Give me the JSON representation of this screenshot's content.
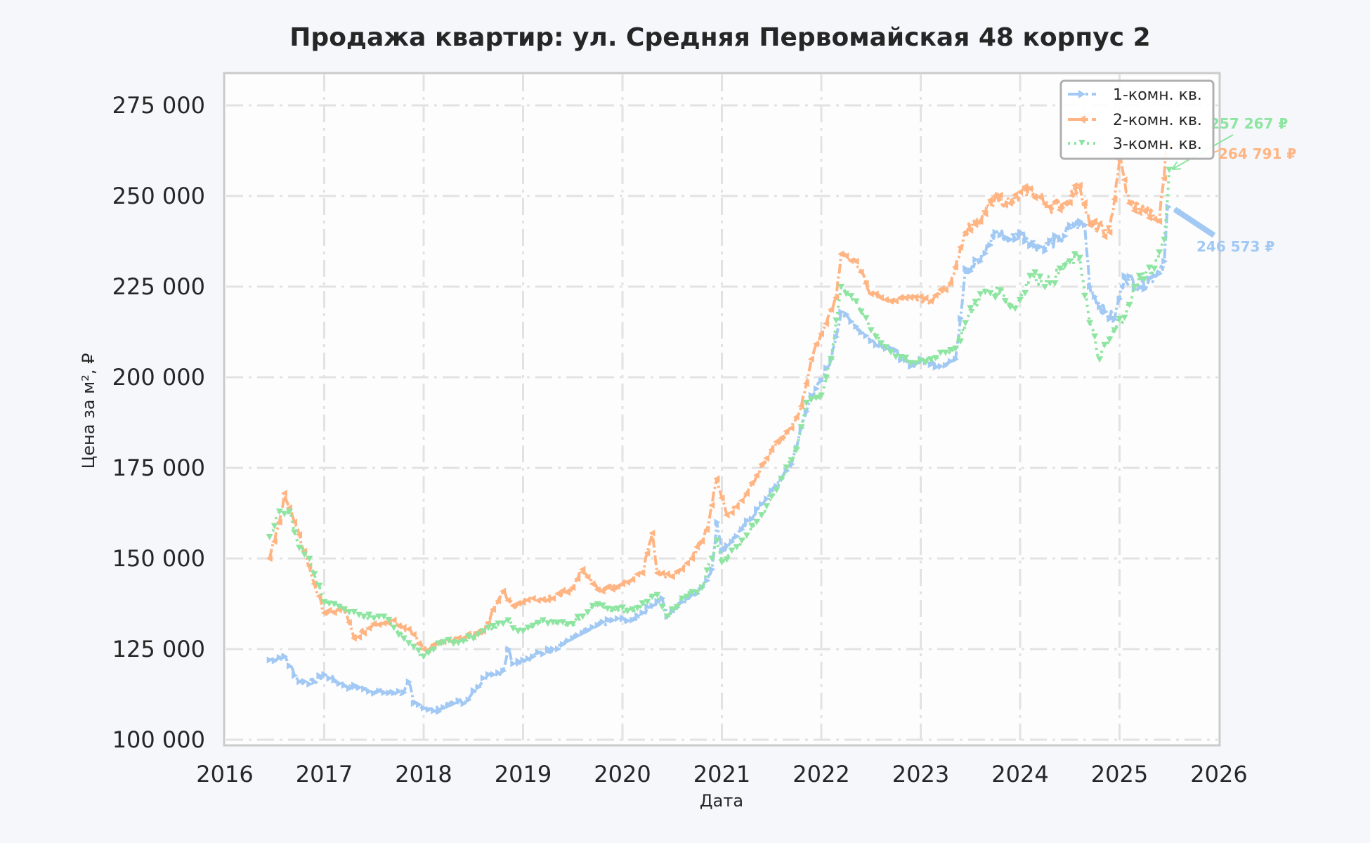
{
  "chart_data": {
    "type": "line",
    "title": "Продажа квартир: ул. Средняя Первомайская 48 корпус 2",
    "xlabel": "Дата",
    "ylabel": "Цена за м², ₽",
    "xlim": [
      2016,
      2026
    ],
    "ylim": [
      100000,
      285000
    ],
    "x_ticks": [
      "2016",
      "2017",
      "2018",
      "2019",
      "2020",
      "2021",
      "2022",
      "2023",
      "2024",
      "2025",
      "2026"
    ],
    "y_ticks": [
      "100 000",
      "125 000",
      "150 000",
      "175 000",
      "200 000",
      "225 000",
      "250 000",
      "275 000"
    ],
    "y_tick_values": [
      100000,
      125000,
      150000,
      175000,
      200000,
      225000,
      250000,
      275000
    ],
    "grid": true,
    "legend_position": "upper right",
    "series": [
      {
        "name": "1-комн. кв.",
        "color": "#a1c9f4",
        "marker": "triangle-right",
        "linestyle": "dash-dot",
        "x": [
          2016.45,
          2016.6,
          2016.75,
          2016.9,
          2017.0,
          2017.2,
          2017.4,
          2017.6,
          2017.8,
          2017.85,
          2017.9,
          2018.1,
          2018.3,
          2018.45,
          2018.6,
          2018.8,
          2018.85,
          2018.9,
          2019.0,
          2019.3,
          2019.5,
          2019.7,
          2019.9,
          2020.1,
          2020.3,
          2020.4,
          2020.45,
          2020.6,
          2020.8,
          2020.9,
          2020.95,
          2021.0,
          2021.2,
          2021.4,
          2021.6,
          2021.7,
          2021.8,
          2021.9,
          2022.0,
          2022.1,
          2022.2,
          2022.35,
          2022.5,
          2022.7,
          2022.9,
          2023.0,
          2023.2,
          2023.35,
          2023.45,
          2023.6,
          2023.75,
          2023.9,
          2024.0,
          2024.2,
          2024.4,
          2024.55,
          2024.65,
          2024.7,
          2024.85,
          2024.95,
          2025.05,
          2025.2,
          2025.35,
          2025.45,
          2025.48,
          2025.5
        ],
        "values": [
          122000,
          123000,
          116000,
          116000,
          118000,
          115000,
          114000,
          113000,
          113000,
          116000,
          110000,
          108000,
          110000,
          111000,
          117000,
          119000,
          125000,
          121000,
          122000,
          125000,
          128000,
          131000,
          133000,
          133000,
          137000,
          139000,
          134000,
          138000,
          142000,
          147000,
          160000,
          152000,
          158000,
          165000,
          172000,
          176000,
          186000,
          195000,
          199000,
          205000,
          218000,
          214000,
          210000,
          208000,
          203000,
          205000,
          203000,
          205000,
          230000,
          232000,
          240000,
          238000,
          240000,
          236000,
          238000,
          242000,
          242000,
          225000,
          218000,
          216000,
          228000,
          225000,
          228000,
          232000,
          246000,
          246573
        ]
      },
      {
        "name": "2-комн. кв.",
        "color": "#ffb482",
        "marker": "triangle-left",
        "linestyle": "dash-dot",
        "x": [
          2016.45,
          2016.55,
          2016.6,
          2016.7,
          2016.8,
          2016.9,
          2017.0,
          2017.2,
          2017.3,
          2017.5,
          2017.7,
          2017.9,
          2018.0,
          2018.2,
          2018.4,
          2018.6,
          2018.8,
          2018.9,
          2019.1,
          2019.3,
          2019.5,
          2019.6,
          2019.7,
          2019.8,
          2020.0,
          2020.2,
          2020.3,
          2020.35,
          2020.5,
          2020.7,
          2020.85,
          2020.95,
          2021.05,
          2021.2,
          2021.35,
          2021.5,
          2021.7,
          2021.8,
          2021.9,
          2022.0,
          2022.15,
          2022.2,
          2022.35,
          2022.5,
          2022.7,
          2022.9,
          2023.1,
          2023.3,
          2023.45,
          2023.6,
          2023.75,
          2023.9,
          2024.1,
          2024.3,
          2024.45,
          2024.6,
          2024.7,
          2024.9,
          2025.0,
          2025.1,
          2025.25,
          2025.4,
          2025.48,
          2025.5
        ],
        "values": [
          150000,
          160000,
          168000,
          160000,
          152000,
          143000,
          135000,
          136000,
          128000,
          132000,
          133000,
          129000,
          125000,
          127000,
          128000,
          130000,
          141000,
          137000,
          139000,
          139000,
          142000,
          147000,
          143000,
          141000,
          143000,
          146000,
          157000,
          146000,
          145000,
          150000,
          158000,
          172000,
          162000,
          166000,
          173000,
          180000,
          186000,
          192000,
          205000,
          212000,
          222000,
          234000,
          232000,
          223000,
          221000,
          222000,
          221000,
          226000,
          240000,
          243000,
          250000,
          248000,
          252000,
          247000,
          248000,
          253000,
          242000,
          240000,
          260000,
          248000,
          246000,
          243000,
          265000,
          264791
        ]
      },
      {
        "name": "3-комн. кв.",
        "color": "#8de5a1",
        "marker": "triangle-down",
        "linestyle": "dotted",
        "x": [
          2016.45,
          2016.55,
          2016.65,
          2016.75,
          2016.85,
          2017.0,
          2017.2,
          2017.4,
          2017.6,
          2017.8,
          2018.0,
          2018.2,
          2018.5,
          2018.6,
          2018.85,
          2018.95,
          2019.2,
          2019.5,
          2019.7,
          2019.9,
          2020.1,
          2020.35,
          2020.45,
          2020.6,
          2020.8,
          2020.95,
          2021.0,
          2021.2,
          2021.4,
          2021.6,
          2021.75,
          2021.85,
          2022.0,
          2022.1,
          2022.2,
          2022.35,
          2022.5,
          2022.7,
          2022.9,
          2023.1,
          2023.35,
          2023.45,
          2023.6,
          2023.8,
          2023.95,
          2024.1,
          2024.3,
          2024.5,
          2024.6,
          2024.7,
          2024.8,
          2024.95,
          2025.1,
          2025.2,
          2025.35,
          2025.45,
          2025.5
        ],
        "values": [
          156000,
          163000,
          163000,
          153000,
          150000,
          138000,
          136000,
          134000,
          134000,
          128000,
          123000,
          127000,
          128000,
          130000,
          133000,
          130000,
          133000,
          132000,
          137000,
          136000,
          136000,
          140000,
          134000,
          139000,
          142000,
          155000,
          149000,
          155000,
          162000,
          172000,
          180000,
          193000,
          195000,
          205000,
          225000,
          221000,
          213000,
          207000,
          204000,
          205000,
          208000,
          215000,
          223000,
          224000,
          219000,
          228000,
          226000,
          232000,
          233000,
          215000,
          205000,
          213000,
          220000,
          228000,
          230000,
          238000,
          257267
        ]
      }
    ],
    "annotations": [
      {
        "text": "246 573 ₽",
        "series": "1-комн. кв.",
        "color": "#a1c9f4"
      },
      {
        "text": "264 791 ₽",
        "series": "2-комн. кв.",
        "color": "#ffb482"
      },
      {
        "text": "257 267 ₽",
        "series": "3-комн. кв.",
        "color": "#8de5a1"
      }
    ]
  },
  "legend": {
    "items": [
      {
        "label": "1-комн. кв.",
        "color": "#a1c9f4"
      },
      {
        "label": "2-комн. кв.",
        "color": "#ffb482"
      },
      {
        "label": "3-комн. кв.",
        "color": "#8de5a1"
      }
    ]
  }
}
